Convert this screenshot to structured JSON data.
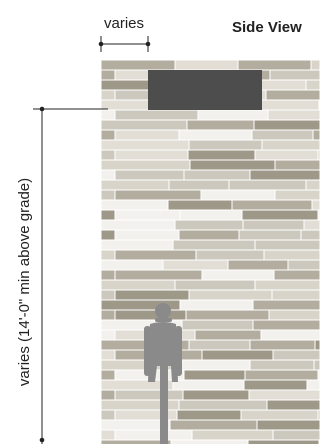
{
  "title": "Side View",
  "width_label": "varies",
  "height_label": "varies (14'-0\" min above grade)",
  "colors": {
    "stroke": "#222222",
    "sign_panel": "#4d4d4d",
    "human_figure": "#8a8a8a",
    "wall_tones": [
      "#f3f1ed",
      "#e2ded6",
      "#cdc8bd",
      "#b3ada0",
      "#9e9889",
      "#d9d4ca"
    ]
  },
  "icons": {
    "sign": "sign-panel",
    "person": "human-figure-icon"
  }
}
